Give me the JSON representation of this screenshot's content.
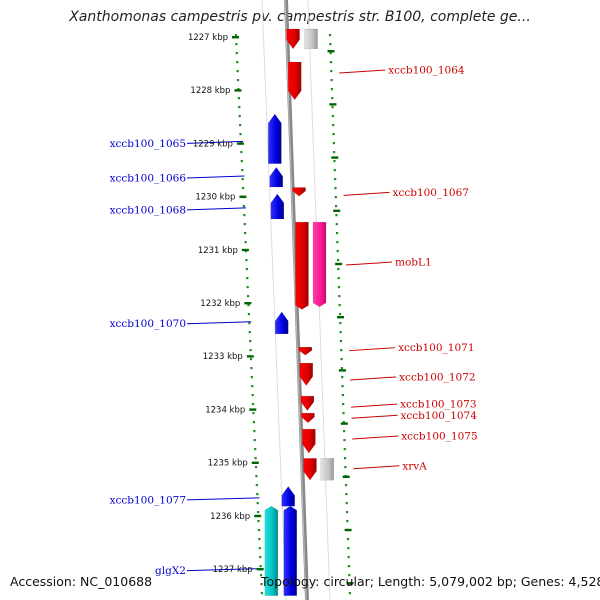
{
  "title": "Xanthomonas campestris pv. campestris str. B100, complete ge...",
  "footer": {
    "accession": "Accession: NC_010688",
    "topology": "Topology: circular; Length: 5,079,002 bp; Genes: 4,528"
  },
  "colors": {
    "forward_gene": "#ff0000",
    "reverse_gene": "#0000ff",
    "mobile_gene": "#ff1493",
    "rna_or_other": "#00c8c8",
    "pseudo_gene": "#bbbbbb",
    "backbone": "#888888",
    "tick": "#228b22",
    "kbp_tick": "#006400"
  },
  "kbp_labels": [
    {
      "kbp": 1227,
      "text": "1227 kbp"
    },
    {
      "kbp": 1228,
      "text": "1228 kbp"
    },
    {
      "kbp": 1229,
      "text": "1229 kbp"
    },
    {
      "kbp": 1230,
      "text": "1230 kbp"
    },
    {
      "kbp": 1231,
      "text": "1231 kbp"
    },
    {
      "kbp": 1232,
      "text": "1232 kbp"
    },
    {
      "kbp": 1233,
      "text": "1233 kbp"
    },
    {
      "kbp": 1234,
      "text": "1234 kbp"
    },
    {
      "kbp": 1235,
      "text": "1235 kbp"
    },
    {
      "kbp": 1236,
      "text": "1236 kbp"
    },
    {
      "kbp": 1237,
      "text": "1237 kbp"
    }
  ],
  "genes": [
    {
      "name": "",
      "strand": "+",
      "type": "gene",
      "start_kbp": 1226.85,
      "end_kbp": 1227.22
    },
    {
      "name": "",
      "strand": "+",
      "type": "pseudo",
      "start_kbp": 1226.85,
      "end_kbp": 1227.22
    },
    {
      "name": "xccb100_1064",
      "strand": "+",
      "type": "gene",
      "start_kbp": 1227.47,
      "end_kbp": 1228.18
    },
    {
      "name": "xccb100_1065",
      "strand": "-",
      "type": "gene",
      "start_kbp": 1228.45,
      "end_kbp": 1229.38
    },
    {
      "name": "xccb100_1066",
      "strand": "-",
      "type": "gene",
      "start_kbp": 1229.45,
      "end_kbp": 1229.82
    },
    {
      "name": "xccb100_1067",
      "strand": "+",
      "type": "gene",
      "start_kbp": 1229.83,
      "end_kbp": 1229.99
    },
    {
      "name": "xccb100_1068",
      "strand": "-",
      "type": "gene",
      "start_kbp": 1229.95,
      "end_kbp": 1230.42
    },
    {
      "name": "",
      "strand": "+",
      "type": "gene",
      "start_kbp": 1230.48,
      "end_kbp": 1232.12
    },
    {
      "name": "mobL1",
      "strand": "+",
      "type": "mobile",
      "start_kbp": 1230.48,
      "end_kbp": 1232.07
    },
    {
      "name": "xccb100_1070",
      "strand": "-",
      "type": "gene",
      "start_kbp": 1232.17,
      "end_kbp": 1232.58
    },
    {
      "name": "xccb100_1071",
      "strand": "+",
      "type": "gene",
      "start_kbp": 1232.83,
      "end_kbp": 1232.98
    },
    {
      "name": "xccb100_1072",
      "strand": "+",
      "type": "gene",
      "start_kbp": 1233.13,
      "end_kbp": 1233.55
    },
    {
      "name": "xccb100_1073",
      "strand": "+",
      "type": "gene",
      "start_kbp": 1233.75,
      "end_kbp": 1234.02
    },
    {
      "name": "xccb100_1074",
      "strand": "+",
      "type": "gene",
      "start_kbp": 1234.07,
      "end_kbp": 1234.25
    },
    {
      "name": "xccb100_1075",
      "strand": "+",
      "type": "gene",
      "start_kbp": 1234.37,
      "end_kbp": 1234.82
    },
    {
      "name": "xrvA",
      "strand": "+",
      "type": "gene",
      "start_kbp": 1234.92,
      "end_kbp": 1235.33
    },
    {
      "name": "",
      "strand": "+",
      "type": "pseudo",
      "start_kbp": 1234.92,
      "end_kbp": 1235.33
    },
    {
      "name": "xccb100_1077",
      "strand": "-",
      "type": "gene",
      "start_kbp": 1235.45,
      "end_kbp": 1235.82
    },
    {
      "name": "glgX2",
      "strand": "-",
      "type": "rna",
      "start_kbp": 1235.82,
      "end_kbp": 1237.5
    },
    {
      "name": "",
      "strand": "-",
      "type": "gene",
      "start_kbp": 1235.82,
      "end_kbp": 1237.5
    }
  ],
  "gene_labels": [
    {
      "text": "xccb100_1064",
      "side": "right",
      "kbp": 1227.62
    },
    {
      "text": "xccb100_1065",
      "side": "left",
      "kbp": 1229.0
    },
    {
      "text": "xccb100_1066",
      "side": "left",
      "kbp": 1229.65
    },
    {
      "text": "xccb100_1067",
      "side": "right",
      "kbp": 1229.92
    },
    {
      "text": "xccb100_1068",
      "side": "left",
      "kbp": 1230.25
    },
    {
      "text": "mobL1",
      "side": "right",
      "kbp": 1231.23
    },
    {
      "text": "xccb100_1070",
      "side": "left",
      "kbp": 1232.39
    },
    {
      "text": "xccb100_1071",
      "side": "right",
      "kbp": 1232.84
    },
    {
      "text": "xccb100_1072",
      "side": "right",
      "kbp": 1233.39
    },
    {
      "text": "xccb100_1073",
      "side": "right",
      "kbp": 1233.9
    },
    {
      "text": "xccb100_1074",
      "side": "right",
      "kbp": 1234.11
    },
    {
      "text": "xccb100_1075",
      "side": "right",
      "kbp": 1234.5
    },
    {
      "text": "xrvA",
      "side": "right",
      "kbp": 1235.06
    },
    {
      "text": "xccb100_1077",
      "side": "left",
      "kbp": 1235.7
    },
    {
      "text": "glgX2",
      "side": "left",
      "kbp": 1237.03
    }
  ]
}
